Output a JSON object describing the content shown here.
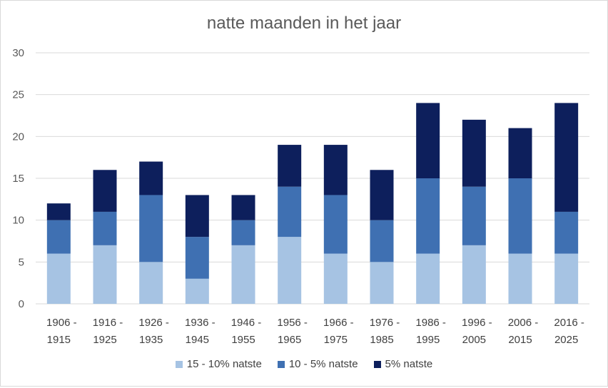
{
  "chart_data": {
    "type": "bar",
    "stacked": true,
    "title": "natte maanden in het jaar",
    "categories": [
      "1906 - 1915",
      "1916 - 1925",
      "1926 - 1935",
      "1936 - 1945",
      "1946 - 1955",
      "1956 - 1965",
      "1966 - 1975",
      "1976 - 1985",
      "1986 - 1995",
      "1996 - 2005",
      "2006 - 2015",
      "2016 - 2025"
    ],
    "category_lines": [
      [
        "1906 -",
        "1915"
      ],
      [
        "1916 -",
        "1925"
      ],
      [
        "1926 -",
        "1935"
      ],
      [
        "1936 -",
        "1945"
      ],
      [
        "1946 -",
        "1955"
      ],
      [
        "1956 -",
        "1965"
      ],
      [
        "1966 -",
        "1975"
      ],
      [
        "1976 -",
        "1985"
      ],
      [
        "1986 -",
        "1995"
      ],
      [
        "1996 -",
        "2005"
      ],
      [
        "2006 -",
        "2015"
      ],
      [
        "2016 -",
        "2025"
      ]
    ],
    "series": [
      {
        "name": "15 - 10% natste",
        "color": "#a6c3e3",
        "values": [
          6,
          7,
          5,
          3,
          7,
          8,
          6,
          5,
          6,
          7,
          6,
          6
        ]
      },
      {
        "name": "10 - 5% natste",
        "color": "#3f70b2",
        "values": [
          4,
          4,
          8,
          5,
          3,
          6,
          7,
          5,
          9,
          7,
          9,
          5
        ]
      },
      {
        "name": "5% natste",
        "color": "#0d1f5c",
        "values": [
          2,
          5,
          4,
          5,
          3,
          5,
          6,
          6,
          9,
          8,
          6,
          13
        ]
      }
    ],
    "ylim": [
      0,
      30
    ],
    "yticks": [
      0,
      5,
      10,
      15,
      20,
      25,
      30
    ],
    "grid": true,
    "legend_position": "bottom",
    "xlabel": "",
    "ylabel": ""
  }
}
